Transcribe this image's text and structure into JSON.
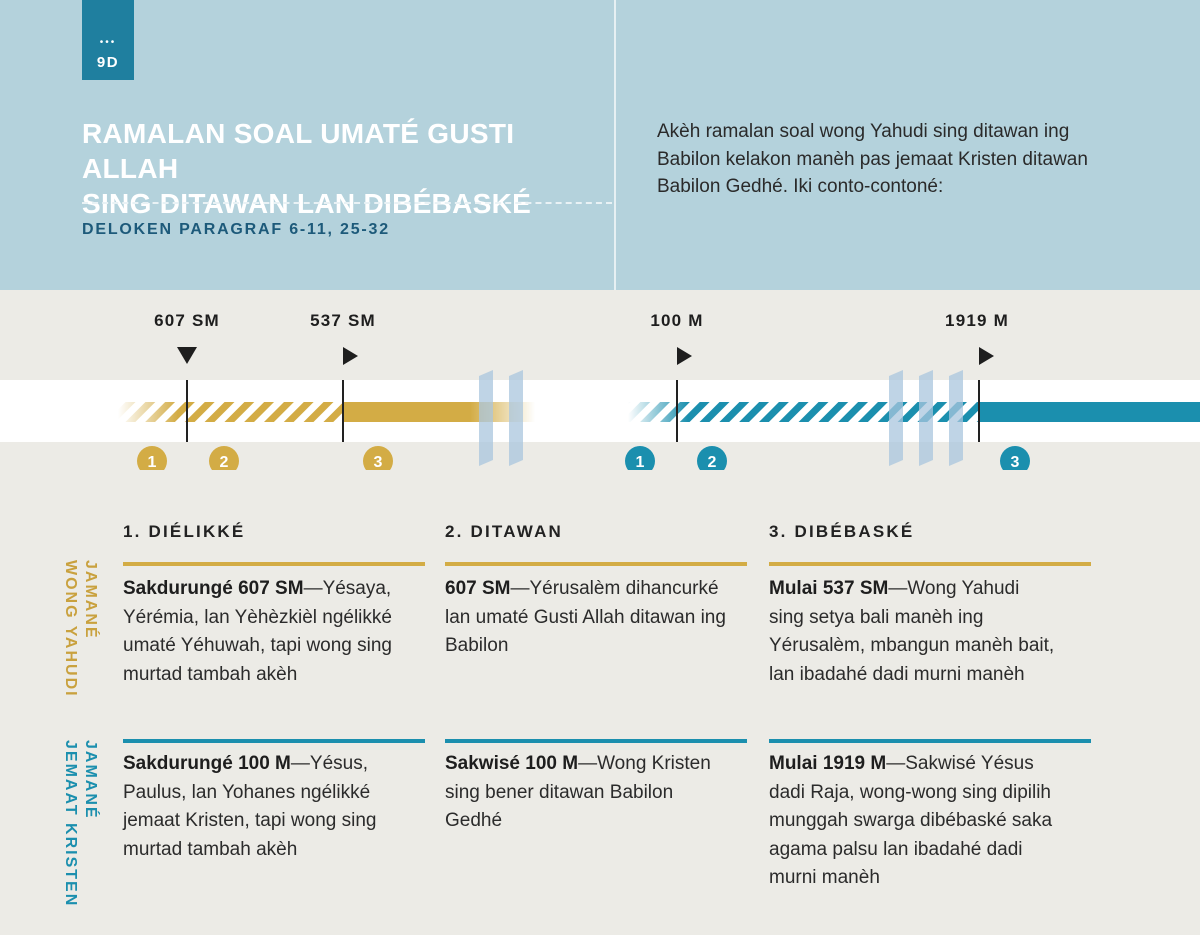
{
  "tag": {
    "dots": "•••",
    "number": "9D"
  },
  "title": {
    "line1": "RAMALAN SOAL UMATÉ GUSTI ALLAH",
    "line2": "SING DITAWAN LAN DIBÉBASKÉ"
  },
  "subtitle": "DELOKEN PARAGRAF 6-11, 25-32",
  "intro": "Akèh ramalan soal wong Yahudi sing ditawan ing Babilon kelakon manèh pas jemaat Kristen ditawan Babilon Gedhé. Iki conto-contoné:",
  "timeline": {
    "dates": [
      "607 SM",
      "537 SM",
      "100 M",
      "1919 M"
    ],
    "markers": [
      "1",
      "2",
      "3",
      "1",
      "2",
      "3"
    ]
  },
  "columns": {
    "headers": [
      "1. DIÉLIKKÉ",
      "2. DITAWAN",
      "3. DIBÉBASKÉ"
    ]
  },
  "rows": {
    "jewish": {
      "label_line1": "JAMANÉ",
      "label_line2": "WONG YAHUDI",
      "cells": [
        {
          "bold": "Sakdurungé 607 SM",
          "text": "—Yésaya, Yérémia, lan Yèhèzkièl ngélikké umaté Yéhuwah, tapi wong sing murtad tambah akèh"
        },
        {
          "bold": "607 SM",
          "text": "—Yérusalèm dihancurké lan umaté Gusti Allah ditawan ing Babilon"
        },
        {
          "bold": "Mulai 537 SM",
          "text": "—Wong Yahudi sing setya bali manèh ing Yérusalèm, mbangun manèh bait, lan ibadahé dadi murni manèh"
        }
      ]
    },
    "christian": {
      "label_line1": "JAMANÉ",
      "label_line2": "JEMAAT KRISTEN",
      "cells": [
        {
          "bold": "Sakdurungé 100 M",
          "text": "—Yésus, Paulus, lan Yohanes ngélikké jemaat Kristen, tapi wong sing murtad tambah akèh"
        },
        {
          "bold": "Sakwisé 100 M",
          "text": "—Wong Kristen sing bener ditawan Babilon Gedhé"
        },
        {
          "bold": "Mulai 1919 M",
          "text": "—Sakwisé Yésus dadi Raja, wong-wong sing dipilih munggah swarga dibébaskégsaka agama palsu lan ibadahé dadi murni manèh"
        }
      ]
    }
  },
  "colors": {
    "gold": "#d3ac45",
    "blue": "#1b8fae",
    "header_bg": "#b4d2dc",
    "tag_bg": "#1f7f9f"
  }
}
